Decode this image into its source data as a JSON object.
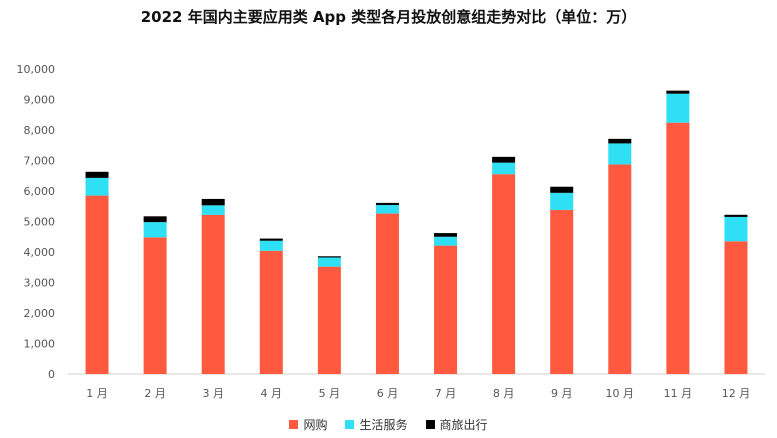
{
  "chart_data": {
    "type": "bar",
    "stacked": true,
    "title": "2022 年国内主要应用类 App 类型各月投放创意组走势对比（单位：万）",
    "categories": [
      "1 月",
      "2 月",
      "3 月",
      "4 月",
      "5 月",
      "6 月",
      "7 月",
      "8 月",
      "9 月",
      "10 月",
      "11 月",
      "12 月"
    ],
    "series": [
      {
        "name": "网购",
        "color": "#ff5a40",
        "values": [
          5850,
          4480,
          5220,
          4040,
          3520,
          5260,
          4210,
          6550,
          5380,
          6870,
          8240,
          4350
        ]
      },
      {
        "name": "生活服务",
        "color": "#2fe0f5",
        "values": [
          580,
          500,
          310,
          330,
          300,
          280,
          290,
          380,
          560,
          690,
          950,
          800
        ]
      },
      {
        "name": "商旅出行",
        "color": "#000000",
        "values": [
          200,
          190,
          210,
          70,
          40,
          70,
          120,
          190,
          200,
          150,
          100,
          70
        ]
      }
    ],
    "ylim": [
      0,
      10000
    ],
    "yticks": [
      "0",
      "1,000",
      "2,000",
      "3,000",
      "4,000",
      "5,000",
      "6,000",
      "7,000",
      "8,000",
      "9,000",
      "10,000"
    ],
    "grid": false,
    "legend_position": "bottom"
  }
}
